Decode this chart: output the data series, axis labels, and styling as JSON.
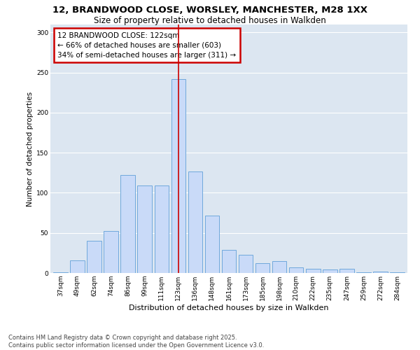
{
  "title1": "12, BRANDWOOD CLOSE, WORSLEY, MANCHESTER, M28 1XX",
  "title2": "Size of property relative to detached houses in Walkden",
  "xlabel": "Distribution of detached houses by size in Walkden",
  "ylabel": "Number of detached properties",
  "categories": [
    "37sqm",
    "49sqm",
    "62sqm",
    "74sqm",
    "86sqm",
    "99sqm",
    "111sqm",
    "123sqm",
    "136sqm",
    "148sqm",
    "161sqm",
    "173sqm",
    "185sqm",
    "198sqm",
    "210sqm",
    "222sqm",
    "235sqm",
    "247sqm",
    "259sqm",
    "272sqm",
    "284sqm"
  ],
  "values": [
    1,
    16,
    40,
    52,
    122,
    109,
    109,
    242,
    127,
    72,
    29,
    23,
    12,
    15,
    7,
    5,
    4,
    5,
    1,
    2,
    1
  ],
  "bar_color": "#c9daf8",
  "bar_edge_color": "#6fa8dc",
  "vline_index": 7,
  "vline_color": "#cc0000",
  "annotation_text": "12 BRANDWOOD CLOSE: 122sqm\n← 66% of detached houses are smaller (603)\n34% of semi-detached houses are larger (311) →",
  "annotation_box_edgecolor": "#cc0000",
  "ylim": [
    0,
    310
  ],
  "yticks": [
    0,
    50,
    100,
    150,
    200,
    250,
    300
  ],
  "bg_color": "#dce6f1",
  "grid_color": "#ffffff",
  "footer_text": "Contains HM Land Registry data © Crown copyright and database right 2025.\nContains public sector information licensed under the Open Government Licence v3.0.",
  "title1_fontsize": 9.5,
  "title2_fontsize": 8.5,
  "xlabel_fontsize": 8,
  "ylabel_fontsize": 7.5,
  "tick_fontsize": 6.5,
  "annotation_fontsize": 7.5,
  "footer_fontsize": 6
}
